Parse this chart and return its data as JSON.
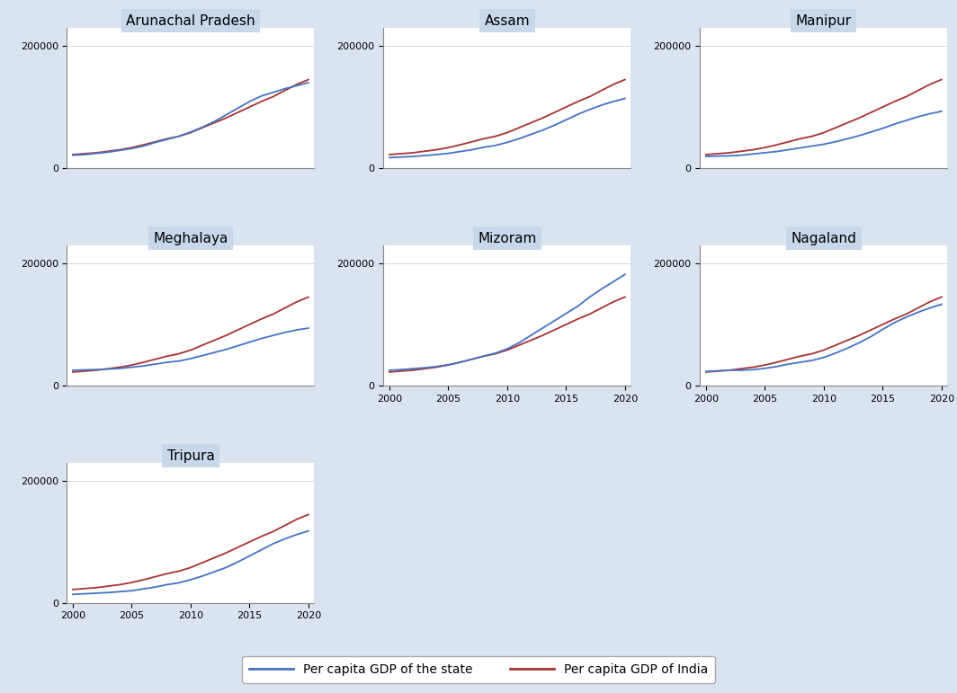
{
  "years": [
    2000,
    2001,
    2002,
    2003,
    2004,
    2005,
    2006,
    2007,
    2008,
    2009,
    2010,
    2011,
    2012,
    2013,
    2014,
    2015,
    2016,
    2017,
    2018,
    2019,
    2020
  ],
  "india_gdp": [
    22000,
    23500,
    25000,
    27500,
    30000,
    33500,
    38000,
    43000,
    48000,
    52000,
    58000,
    66000,
    74000,
    82000,
    91000,
    100000,
    109000,
    117000,
    127000,
    137000,
    145000
  ],
  "states": {
    "Arunachal Pradesh": [
      21000,
      22000,
      24000,
      26000,
      29000,
      32000,
      36000,
      42000,
      47000,
      52000,
      59000,
      67000,
      76000,
      87000,
      98000,
      109000,
      118000,
      124000,
      130000,
      135000,
      140000
    ],
    "Assam": [
      17000,
      18000,
      19000,
      20500,
      22000,
      24000,
      27000,
      30000,
      34000,
      37000,
      42000,
      48000,
      55000,
      62000,
      70000,
      79000,
      88000,
      96000,
      103000,
      109000,
      114000
    ],
    "Manipur": [
      19000,
      19500,
      20000,
      21000,
      23000,
      25000,
      27000,
      30000,
      33000,
      36000,
      39000,
      43000,
      48000,
      53000,
      59000,
      65000,
      72000,
      78000,
      84000,
      89000,
      93000
    ],
    "Meghalaya": [
      25000,
      25500,
      26000,
      27000,
      28000,
      30000,
      32000,
      35000,
      38000,
      40000,
      44000,
      49000,
      54000,
      59000,
      65000,
      71000,
      77000,
      82000,
      87000,
      91000,
      94000
    ],
    "Mizoram": [
      25000,
      26000,
      27500,
      29000,
      31000,
      34000,
      38000,
      43000,
      48000,
      53000,
      60000,
      70000,
      82000,
      94000,
      106000,
      118000,
      130000,
      145000,
      158000,
      170000,
      182000
    ],
    "Nagaland": [
      23000,
      24000,
      25000,
      25000,
      26000,
      28000,
      31000,
      35000,
      38000,
      41000,
      46000,
      53000,
      61000,
      70000,
      80000,
      92000,
      103000,
      112000,
      120000,
      127000,
      133000
    ],
    "Tripura": [
      14000,
      15000,
      16000,
      17000,
      18500,
      20000,
      23000,
      26000,
      30000,
      33000,
      38000,
      44000,
      51000,
      58000,
      67000,
      77000,
      87000,
      97000,
      105000,
      112000,
      118000
    ]
  },
  "india_color": "#a83232",
  "state_color": "#4472c4",
  "bg_color": "#d9e4f0",
  "plot_bg": "#ffffff",
  "title_bg": "#c8d8ea",
  "grid_color": "#d0d8e0",
  "ylim": [
    0,
    230000
  ],
  "ytick_labels": [
    "0",
    "200000"
  ],
  "ytick_vals": [
    0,
    200000
  ],
  "xticks": [
    2000,
    2005,
    2010,
    2015,
    2020
  ],
  "legend_state_label": "Per capita GDP of the state",
  "legend_india_label": "Per capita GDP of India",
  "layout": [
    "Arunachal Pradesh",
    "Assam",
    "Manipur",
    "Meghalaya",
    "Mizoram",
    "Nagaland",
    "Tripura"
  ]
}
